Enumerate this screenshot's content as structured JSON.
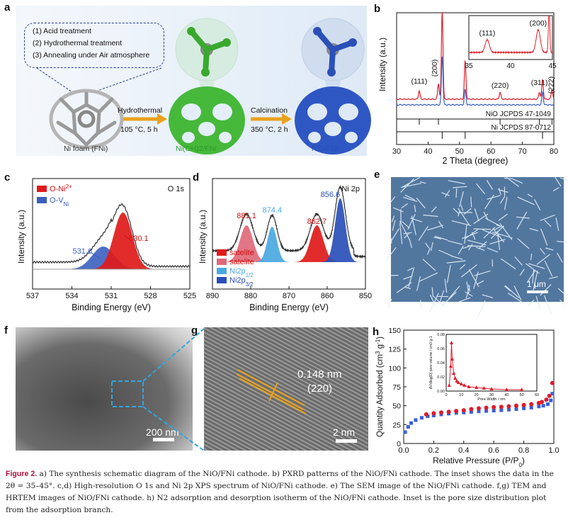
{
  "panels": {
    "a": {
      "label": "a",
      "steps": [
        "(1) Acid treatment",
        "(2) Hydrothermal treatment",
        "(3) Annealing under Air atmosphere"
      ],
      "arrow1": {
        "title": "Hydrothermal",
        "cond": "105 °C, 5 h"
      },
      "arrow2": {
        "title": "Calcination",
        "cond": "350 °C, 2 h"
      },
      "foam_label": "Ni foam (FNi)",
      "mid_label": "Ni(OH)2/FNi",
      "end_label": "NiO/FNi",
      "colors": {
        "background": "#e4eef8",
        "green": "#3aa82e",
        "blue": "#2a4fb8",
        "arrow": "#e8a21c"
      }
    },
    "b": {
      "label": "b"
    },
    "c": {
      "label": "c"
    },
    "d": {
      "label": "d"
    },
    "e": {
      "label": "e",
      "scale": "1 μm"
    },
    "f": {
      "label": "f",
      "scale": "200 nm"
    },
    "g": {
      "label": "g",
      "scale": "2 nm",
      "spacing": "0.148 nm",
      "plane": "(220)"
    },
    "h": {
      "label": "h"
    }
  },
  "chart_data": [
    {
      "id": "b",
      "type": "line",
      "xlabel": "2 Theta (degree)",
      "ylabel": "Intensity (a.u.)",
      "xlim": [
        30,
        80
      ],
      "xticks": [
        30,
        40,
        50,
        60,
        70,
        80
      ],
      "peaks": [
        {
          "x": 37.2,
          "label": "(111)"
        },
        {
          "x": 43.3,
          "label": "(200)"
        },
        {
          "x": 62.9,
          "label": "(220)"
        },
        {
          "x": 75.4,
          "label": "(311)"
        },
        {
          "x": 79.4,
          "label": "(222)"
        }
      ],
      "ni_peaks": [
        44.5,
        51.8,
        76.4
      ],
      "references": [
        "NiO JCPDS 47-1049",
        "Ni JCPDS 87-0712"
      ],
      "ref_nio_sticks": [
        37.2,
        43.3,
        62.9,
        75.4,
        79.4
      ],
      "ref_ni_sticks": [
        44.5,
        51.8,
        76.4
      ],
      "inset": {
        "xlim": [
          35,
          45
        ],
        "xticks": [
          35,
          40,
          45
        ],
        "labels": [
          "(111)",
          "(200)"
        ]
      },
      "colors": [
        "#e0202a",
        "#3a5fc0"
      ]
    },
    {
      "id": "c",
      "type": "line",
      "xlabel": "Binding Energy (eV)",
      "ylabel": "Intensity (a.u.)",
      "title": "O 1s",
      "xlim": [
        537,
        525
      ],
      "xticks": [
        537,
        534,
        531,
        528,
        525
      ],
      "peaks": [
        {
          "x": 530.1,
          "label": "530.1"
        },
        {
          "x": 531.6,
          "label": "531.6"
        }
      ],
      "series": [
        {
          "name": "O-Ni2+",
          "center": 530.1,
          "color": "#e01a1a"
        },
        {
          "name": "O-VNi",
          "center": 531.6,
          "color": "#3a5fc0"
        }
      ]
    },
    {
      "id": "d",
      "type": "line",
      "xlabel": "Binding Energy (eV)",
      "ylabel": "Intensity (a.u.)",
      "title": "Ni 2p",
      "xlim": [
        890,
        850
      ],
      "xticks": [
        890,
        880,
        870,
        860,
        850
      ],
      "peaks": [
        {
          "x": 881.1,
          "label": "881.1"
        },
        {
          "x": 874.4,
          "label": "874.4"
        },
        {
          "x": 862.7,
          "label": "862.7"
        },
        {
          "x": 856.6,
          "label": "856.6"
        }
      ],
      "series": [
        {
          "name": "satelite",
          "color": "#e01a1a"
        },
        {
          "name": "satelite",
          "color": "#e06a7a"
        },
        {
          "name": "Ni2p1/2",
          "color": "#4aa8e0"
        },
        {
          "name": "Ni2p3/2",
          "color": "#2a4fb8"
        }
      ]
    },
    {
      "id": "h",
      "type": "scatter",
      "xlabel": "Relative Pressure (P/P0)",
      "ylabel": "Quantity Adsorbed (cm3 g-1)",
      "xlim": [
        0.0,
        1.0
      ],
      "ylim": [
        0,
        150
      ],
      "xticks": [
        0.0,
        0.2,
        0.4,
        0.6,
        0.8,
        1.0
      ],
      "yticks": [
        0,
        25,
        50,
        75,
        100,
        125,
        150
      ],
      "series": [
        {
          "name": "adsorption",
          "color": "#3a5fd8",
          "x": [
            0.01,
            0.03,
            0.05,
            0.08,
            0.12,
            0.16,
            0.2,
            0.25,
            0.3,
            0.35,
            0.4,
            0.45,
            0.5,
            0.55,
            0.6,
            0.65,
            0.7,
            0.75,
            0.8,
            0.85,
            0.9,
            0.93,
            0.96,
            0.98,
            0.99
          ],
          "y": [
            15,
            22,
            27,
            31,
            34,
            36,
            37,
            38.5,
            39.5,
            40.5,
            41,
            41.8,
            42.5,
            43,
            43.5,
            44,
            44.8,
            45.5,
            46.5,
            47.5,
            49,
            50,
            52,
            57,
            66
          ]
        },
        {
          "name": "desorption",
          "color": "#e01a2a",
          "x": [
            0.99,
            0.97,
            0.95,
            0.92,
            0.9,
            0.85,
            0.8,
            0.75,
            0.7,
            0.65,
            0.6,
            0.55,
            0.5,
            0.45,
            0.4,
            0.35,
            0.3,
            0.25,
            0.2,
            0.15
          ],
          "y": [
            80,
            63,
            58,
            55,
            53.5,
            52,
            51,
            50,
            49.2,
            48.5,
            48,
            47.3,
            46.5,
            45.5,
            44,
            43,
            42,
            41,
            40,
            38.5
          ]
        }
      ],
      "inset": {
        "xlabel": "Pore Width / nm",
        "ylabel": "dV/dlog(D) pore volume / cm3 g-1",
        "xlim": [
          0,
          60
        ],
        "ylim": [
          0,
          0.08
        ],
        "xticks": [
          0,
          10,
          20,
          30,
          40,
          50,
          60
        ],
        "yticks": [
          0.0,
          0.02,
          0.04,
          0.06,
          0.08
        ],
        "x": [
          2,
          3,
          3.5,
          4,
          5,
          6,
          7,
          8,
          10,
          12,
          15,
          20,
          25,
          30,
          40,
          50
        ],
        "y": [
          0.008,
          0.035,
          0.068,
          0.045,
          0.025,
          0.018,
          0.014,
          0.012,
          0.01,
          0.008,
          0.006,
          0.005,
          0.004,
          0.003,
          0.002,
          0.002
        ]
      }
    }
  ],
  "caption": {
    "label": "Figure 2.",
    "text": "a) The synthesis schematic diagram of the NiO/FNi cathode. b) PXRD patterns of the NiO/FNi cathode. The inset shows the data in the 2θ = 35–45°. c,d) High-resolution O 1s and Ni 2p XPS spectrum of NiO/FNi cathode. e) The SEM image of the NiO/FNi cathode. f,g) TEM and HRTEM images of NiO/FNi cathode. h) N2 adsorption and desorption isotherm of the NiO/FNi cathode. Inset is the pore size distribution plot from the adsorption branch."
  }
}
